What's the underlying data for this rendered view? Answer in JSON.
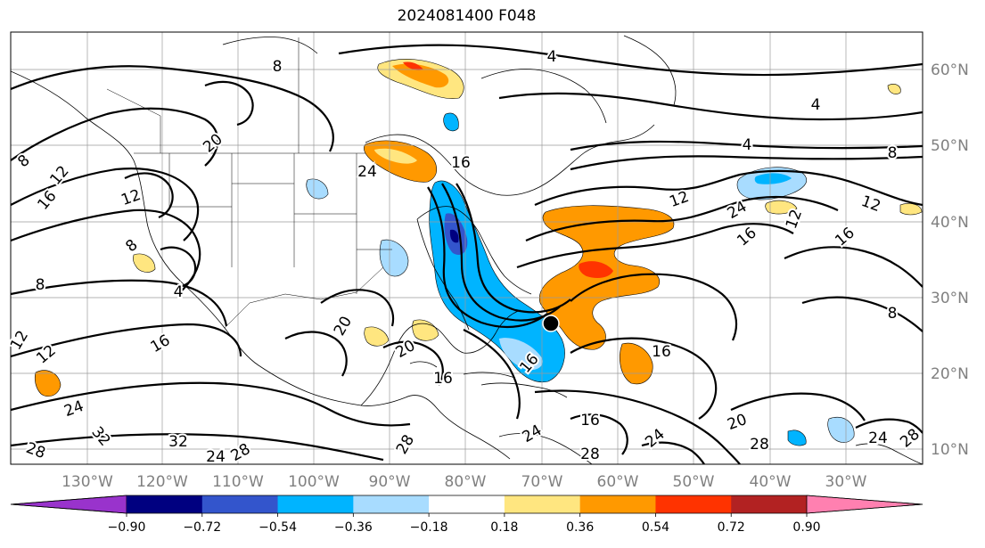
{
  "title": "2024081400 F048",
  "longitude_labels": [
    "130°W",
    "120°W",
    "110°W",
    "100°W",
    "90°W",
    "80°W",
    "70°W",
    "60°W",
    "50°W",
    "40°W",
    "30°W"
  ],
  "latitude_labels": [
    "60°N",
    "50°N",
    "40°N",
    "30°N",
    "20°N",
    "10°N"
  ],
  "colorbar": {
    "tick_labels": [
      "−0.90",
      "−0.72",
      "−0.54",
      "−0.36",
      "−0.18",
      "0.18",
      "0.36",
      "0.54",
      "0.72",
      "0.90"
    ],
    "colors": [
      "#9933cc",
      "#000080",
      "#3355cc",
      "#00b4ff",
      "#a8dcff",
      "#ffffff",
      "#ffe680",
      "#ff9900",
      "#ff3300",
      "#b22222",
      "#ff80b0"
    ]
  },
  "contour_labels": [
    {
      "text": "8"
    },
    {
      "text": "4"
    },
    {
      "text": "4"
    },
    {
      "text": "4"
    },
    {
      "text": "8"
    },
    {
      "text": "12"
    },
    {
      "text": "16"
    },
    {
      "text": "12"
    },
    {
      "text": "8"
    },
    {
      "text": "20"
    },
    {
      "text": "24"
    },
    {
      "text": "16"
    },
    {
      "text": "12"
    },
    {
      "text": "24"
    },
    {
      "text": "16"
    },
    {
      "text": "12"
    },
    {
      "text": "16"
    },
    {
      "text": "12"
    },
    {
      "text": "8"
    },
    {
      "text": "8"
    },
    {
      "text": "4"
    },
    {
      "text": "16"
    },
    {
      "text": "12"
    },
    {
      "text": "12"
    },
    {
      "text": "24"
    },
    {
      "text": "20"
    },
    {
      "text": "20"
    },
    {
      "text": "16"
    },
    {
      "text": "16"
    },
    {
      "text": "16"
    },
    {
      "text": "16"
    },
    {
      "text": "20"
    },
    {
      "text": "24"
    },
    {
      "text": "28"
    },
    {
      "text": "32"
    },
    {
      "text": "32"
    },
    {
      "text": "24"
    },
    {
      "text": "28"
    },
    {
      "text": "28"
    },
    {
      "text": "28"
    },
    {
      "text": "24"
    },
    {
      "text": "28"
    },
    {
      "text": "24"
    },
    {
      "text": "28"
    },
    {
      "text": "8"
    }
  ]
}
